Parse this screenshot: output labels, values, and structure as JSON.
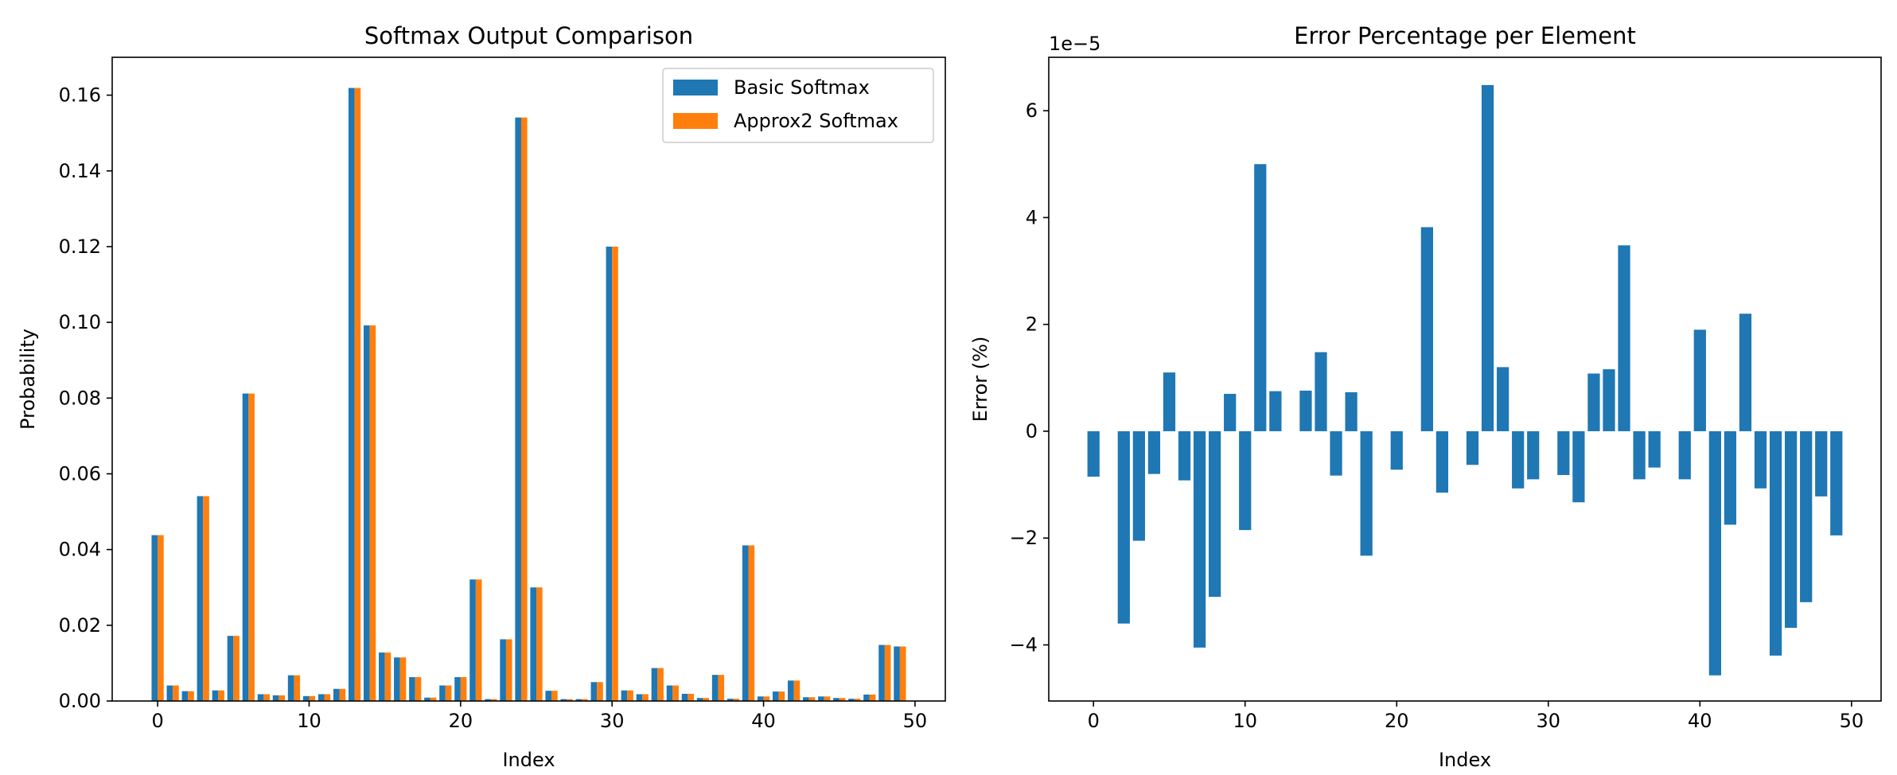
{
  "chart_data": [
    {
      "type": "bar",
      "title": "Softmax Output Comparison",
      "xlabel": "Index",
      "ylabel": "Probability",
      "xlim": [
        -3,
        52
      ],
      "ylim": [
        0,
        0.17
      ],
      "xticks": [
        0,
        10,
        20,
        30,
        40,
        50
      ],
      "yticks": [
        0.0,
        0.02,
        0.04,
        0.06,
        0.08,
        0.1,
        0.12,
        0.14,
        0.16
      ],
      "ytick_labels": [
        "0.00",
        "0.02",
        "0.04",
        "0.06",
        "0.08",
        "0.10",
        "0.12",
        "0.14",
        "0.16"
      ],
      "grid": false,
      "legend_position": "top-right",
      "x": [
        0,
        1,
        2,
        3,
        4,
        5,
        6,
        7,
        8,
        9,
        10,
        11,
        12,
        13,
        14,
        15,
        16,
        17,
        18,
        19,
        20,
        21,
        22,
        23,
        24,
        25,
        26,
        27,
        28,
        29,
        30,
        31,
        32,
        33,
        34,
        35,
        36,
        37,
        38,
        39,
        40,
        41,
        42,
        43,
        44,
        45,
        46,
        47,
        48,
        49
      ],
      "series": [
        {
          "name": "Basic Softmax",
          "color": "#1f77b4",
          "values": [
            0.0438,
            0.0041,
            0.0026,
            0.0541,
            0.0028,
            0.0172,
            0.0812,
            0.0018,
            0.0015,
            0.0068,
            0.0013,
            0.0018,
            0.0032,
            0.1619,
            0.0992,
            0.0128,
            0.0115,
            0.0063,
            0.0009,
            0.0041,
            0.0063,
            0.0321,
            0.0005,
            0.0163,
            0.1541,
            0.03,
            0.0027,
            0.0005,
            0.0005,
            0.005,
            0.12,
            0.0028,
            0.0018,
            0.0087,
            0.0041,
            0.0019,
            0.0008,
            0.0069,
            0.0006,
            0.0411,
            0.0012,
            0.0025,
            0.0054,
            0.001,
            0.0012,
            0.0008,
            0.0006,
            0.0017,
            0.0148,
            0.0144
          ]
        },
        {
          "name": "Approx2 Softmax",
          "color": "#ff7f0e",
          "values": [
            0.0438,
            0.0041,
            0.0026,
            0.0541,
            0.0028,
            0.0172,
            0.0812,
            0.0018,
            0.0015,
            0.0068,
            0.0013,
            0.0018,
            0.0032,
            0.1619,
            0.0992,
            0.0128,
            0.0115,
            0.0063,
            0.0009,
            0.0041,
            0.0063,
            0.0321,
            0.0005,
            0.0163,
            0.1541,
            0.03,
            0.0027,
            0.0005,
            0.0005,
            0.005,
            0.12,
            0.0028,
            0.0018,
            0.0087,
            0.0041,
            0.0019,
            0.0008,
            0.0069,
            0.0006,
            0.0411,
            0.0012,
            0.0025,
            0.0054,
            0.001,
            0.0012,
            0.0008,
            0.0006,
            0.0017,
            0.0148,
            0.0144
          ]
        }
      ]
    },
    {
      "type": "bar",
      "title": "Error Percentage per Element",
      "xlabel": "Index",
      "ylabel": "Error (%)",
      "offset_label": "1e−5",
      "xlim": [
        -2.95,
        51.95
      ],
      "ylim": [
        -5.05,
        7.0
      ],
      "xticks": [
        0,
        10,
        20,
        30,
        40,
        50
      ],
      "yticks": [
        -4,
        -2,
        0,
        2,
        4,
        6
      ],
      "ytick_labels": [
        "−4",
        "−2",
        "0",
        "2",
        "4",
        "6"
      ],
      "grid": false,
      "color": "#1f77b4",
      "x": [
        0,
        1,
        2,
        3,
        4,
        5,
        6,
        7,
        8,
        9,
        10,
        11,
        12,
        13,
        14,
        15,
        16,
        17,
        18,
        19,
        20,
        21,
        22,
        23,
        24,
        25,
        26,
        27,
        28,
        29,
        30,
        31,
        32,
        33,
        34,
        35,
        36,
        37,
        38,
        39,
        40,
        41,
        42,
        43,
        44,
        45,
        46,
        47,
        48,
        49
      ],
      "values_scaled_1e-5": [
        -0.85,
        0,
        -3.6,
        -2.05,
        -0.8,
        1.1,
        -0.92,
        -4.05,
        -3.1,
        0.7,
        -1.85,
        5.0,
        0.75,
        0,
        0.76,
        1.48,
        -0.83,
        0.73,
        -2.33,
        0,
        -0.72,
        0,
        3.82,
        -1.15,
        0,
        -0.63,
        6.48,
        1.2,
        -1.07,
        -0.9,
        0,
        -0.82,
        -1.33,
        1.08,
        1.16,
        3.48,
        -0.9,
        -0.68,
        0,
        -0.9,
        1.9,
        -4.57,
        -1.75,
        2.2,
        -1.07,
        -4.2,
        -3.68,
        -3.2,
        -1.22,
        -1.95
      ]
    }
  ]
}
